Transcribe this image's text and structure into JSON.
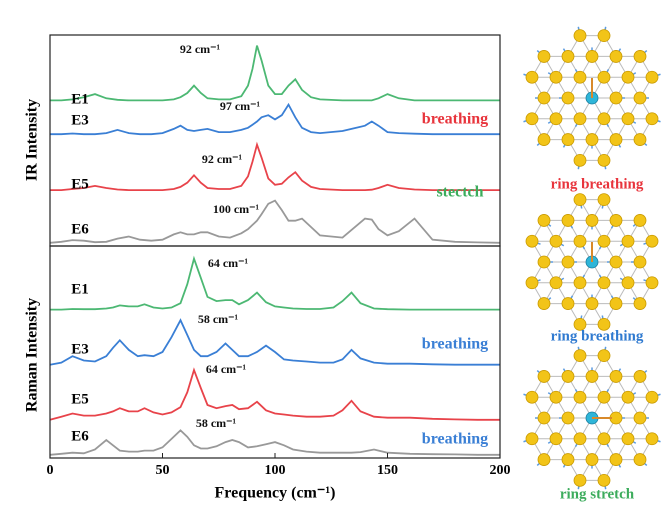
{
  "chart_data": [
    {
      "type": "line",
      "ylabel": "IR Intensity",
      "xlim": [
        0,
        200
      ],
      "ylim": [
        0,
        100
      ],
      "x": [
        0,
        5,
        10,
        15,
        20,
        25,
        30,
        35,
        40,
        45,
        50,
        55,
        58,
        61,
        64,
        67,
        70,
        75,
        80,
        85,
        88,
        90,
        92,
        94,
        97,
        100,
        103,
        106,
        109,
        112,
        116,
        120,
        130,
        140,
        143,
        146,
        150,
        155,
        162,
        170,
        180,
        190,
        200
      ],
      "series": [
        {
          "name": "E1",
          "color": "#4cb873",
          "values": [
            69,
            69,
            69.5,
            70.5,
            72,
            70,
            69.3,
            69,
            69,
            69,
            69,
            69.5,
            70.5,
            72.5,
            76,
            72.5,
            70,
            69.5,
            69.5,
            71,
            76,
            84,
            95,
            88,
            76,
            72,
            72,
            76,
            79,
            74,
            70.5,
            69.5,
            69,
            69,
            69,
            70,
            72,
            70,
            69,
            69,
            69,
            69,
            69
          ]
        },
        {
          "name": "E3",
          "color": "#3a7fd5",
          "values": [
            53,
            53,
            53.3,
            53,
            53,
            53.5,
            55,
            53.5,
            53,
            53,
            53.5,
            55.5,
            57,
            55,
            54.5,
            55,
            55.5,
            54,
            54,
            55,
            56,
            57.5,
            59,
            61,
            62,
            60,
            62,
            67,
            61,
            56,
            54,
            53.5,
            54.5,
            57,
            59,
            57,
            54,
            53.5,
            53.2,
            53,
            53,
            53,
            53
          ]
        },
        {
          "name": "E5",
          "color": "#e8434a",
          "values": [
            26.5,
            26.5,
            27,
            27.5,
            28.5,
            27.5,
            26.8,
            26.5,
            26.5,
            26.5,
            26.5,
            27,
            28,
            30,
            33.5,
            30,
            27.5,
            27,
            27,
            28.5,
            33,
            40,
            48,
            42,
            32,
            29,
            29.5,
            32.5,
            35,
            31,
            28,
            27,
            26.5,
            26.5,
            26.7,
            27.5,
            29,
            27.5,
            26.8,
            26.5,
            26.5,
            26.5,
            26.5
          ]
        },
        {
          "name": "E6",
          "color": "#999999",
          "values": [
            1.5,
            2,
            2.8,
            2.5,
            1.8,
            2,
            3.5,
            4.5,
            3,
            2.5,
            3,
            5.5,
            6.5,
            5.5,
            5.5,
            6.5,
            6.5,
            4.5,
            4,
            6,
            8,
            10,
            12,
            15,
            20,
            21.5,
            17,
            12,
            12,
            13,
            9,
            5,
            4,
            13,
            12.5,
            8,
            5,
            7,
            13,
            3,
            2,
            1.7,
            1.5
          ]
        }
      ],
      "annotations": [
        {
          "text": "92 cm⁻¹"
        },
        {
          "text": "97 cm⁻¹"
        },
        {
          "text": "92 cm⁻¹"
        },
        {
          "text": "100 cm⁻¹"
        },
        {
          "text": "breathing",
          "color": "#e8343c"
        },
        {
          "text": "stectch",
          "color": "#3cac5c"
        }
      ]
    },
    {
      "type": "line",
      "ylabel": "Raman Intensity",
      "xlabel": "Frequency (cm⁻¹)",
      "xlim": [
        0,
        200
      ],
      "ylim": [
        0,
        100
      ],
      "xticks": [
        0,
        50,
        100,
        150,
        200
      ],
      "x": [
        0,
        5,
        10,
        15,
        20,
        25,
        28,
        31,
        35,
        39,
        42,
        46,
        50,
        54,
        58,
        61,
        64,
        67,
        70,
        74,
        78,
        81,
        84,
        88,
        92,
        96,
        100,
        104,
        108,
        114,
        120,
        126,
        130,
        134,
        138,
        144,
        150,
        160,
        170,
        180,
        190,
        200
      ],
      "series": [
        {
          "name": "E1",
          "color": "#4cb873",
          "values": [
            70,
            70,
            70.3,
            70.2,
            70.2,
            70.5,
            71,
            72,
            71.5,
            71.5,
            72.5,
            71,
            70.5,
            71,
            73,
            82,
            94,
            85,
            76,
            74,
            74.5,
            74.5,
            72.5,
            74.5,
            78,
            73.5,
            71.5,
            71,
            70.5,
            70.3,
            70.3,
            71,
            74,
            78,
            73,
            70.5,
            70.2,
            70,
            70,
            70,
            70,
            70
          ]
        },
        {
          "name": "E3",
          "color": "#3a7fd5",
          "values": [
            44,
            45,
            48,
            46,
            45.5,
            48,
            52,
            55.5,
            51,
            48,
            48.5,
            48,
            50,
            57,
            65,
            58,
            51,
            48,
            48,
            50,
            54,
            51,
            48,
            48,
            50,
            53,
            50,
            46.5,
            46,
            45.5,
            45,
            45,
            46.5,
            51,
            47,
            45,
            44.5,
            44.5,
            44.2,
            44,
            44,
            44
          ]
        },
        {
          "name": "E5",
          "color": "#e8434a",
          "values": [
            18,
            19.5,
            21,
            20,
            20,
            21,
            22,
            23.5,
            22,
            22,
            23.5,
            21.5,
            20.5,
            21.5,
            24,
            31,
            41.5,
            33,
            25,
            23.5,
            24.5,
            25,
            23,
            23.5,
            26.5,
            22.5,
            21,
            20.5,
            20,
            19.5,
            19.5,
            20,
            22.5,
            27,
            22,
            19.5,
            19,
            19,
            18.5,
            18.2,
            18,
            18
          ]
        },
        {
          "name": "E6",
          "color": "#999999",
          "values": [
            1.5,
            2,
            2.5,
            2.2,
            4,
            8.5,
            6,
            3.5,
            3,
            3,
            3.5,
            3.5,
            5,
            9,
            13,
            10,
            6,
            4.5,
            4.5,
            5.5,
            7.5,
            8.5,
            7.5,
            5,
            5.5,
            6.5,
            7.5,
            6,
            4,
            3,
            2.5,
            2.5,
            2.5,
            2.5,
            2.8,
            4,
            2.5,
            2,
            1.8,
            1.7,
            1.5,
            1.5
          ]
        }
      ],
      "annotations": [
        {
          "text": "64 cm⁻¹"
        },
        {
          "text": "58 cm⁻¹"
        },
        {
          "text": "64 cm⁻¹"
        },
        {
          "text": "58 cm⁻¹"
        },
        {
          "text": "breathing",
          "color": "#3a7fd5"
        },
        {
          "text": "breathing",
          "color": "#3a7fd5"
        }
      ]
    }
  ],
  "mode_diagrams": [
    {
      "label": "ring breathing",
      "color": "#e8343c"
    },
    {
      "label": "ring breathing",
      "color": "#2f7ad0"
    },
    {
      "label": "ring stretch",
      "color": "#3cac5c"
    }
  ]
}
